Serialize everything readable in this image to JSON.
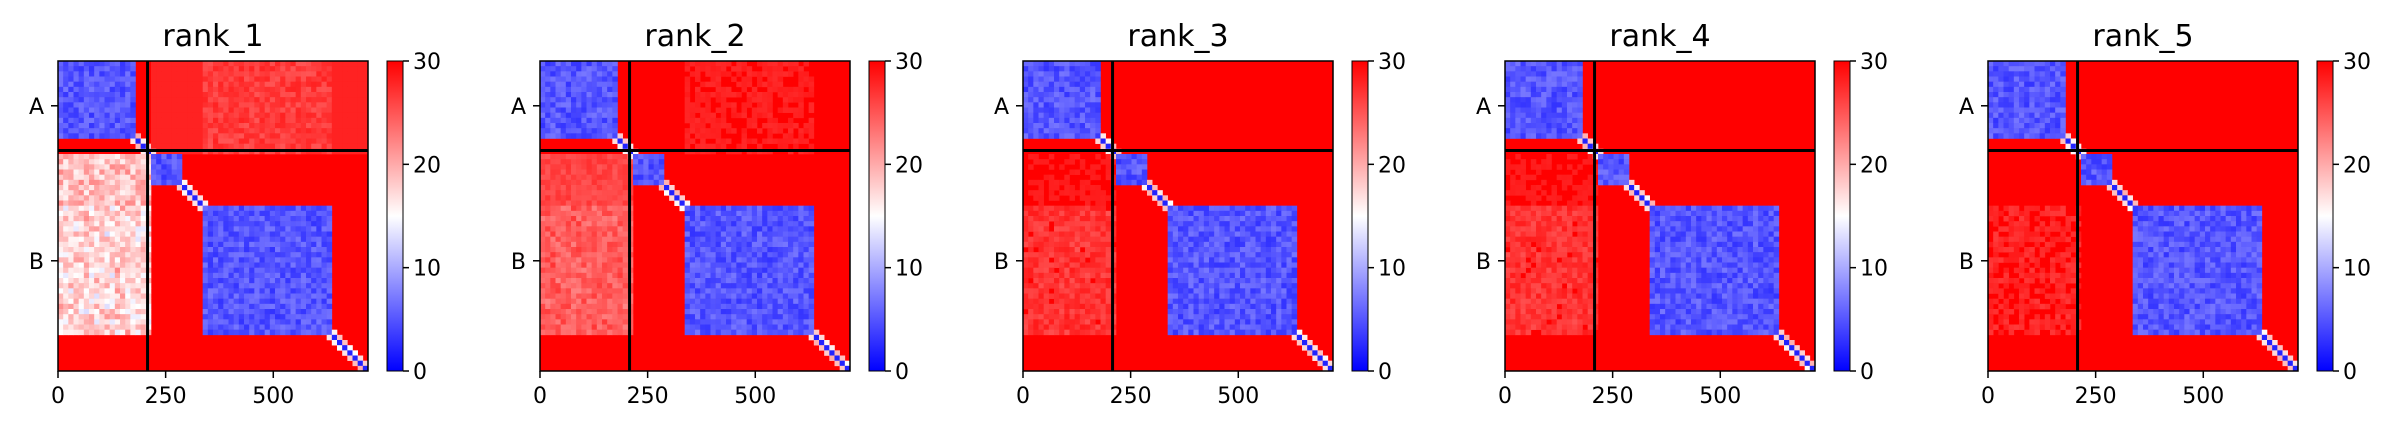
{
  "colors": {
    "high": "#ff0000",
    "mid": "#ffffff",
    "low": "#0000ff",
    "divider": "#000000"
  },
  "chart_data": [
    {
      "type": "heatmap",
      "title": "rank_1",
      "colormap": "bwr",
      "vmin": 0,
      "vmax": 30,
      "colorbar_ticks": [
        0,
        10,
        20,
        30
      ],
      "x_ticks": [
        0,
        250,
        500
      ],
      "y_tick_labels": [
        "A",
        "B"
      ],
      "n_residues": 720,
      "chain_boundary": 208,
      "chains": [
        {
          "name": "A",
          "start": 0,
          "end": 208
        },
        {
          "name": "B",
          "start": 208,
          "end": 720
        }
      ],
      "inter_chain_pae": {
        "AB_upper": 28,
        "BA_lower": 19
      },
      "band_pattern": "strong"
    },
    {
      "type": "heatmap",
      "title": "rank_2",
      "colormap": "bwr",
      "vmin": 0,
      "vmax": 30,
      "colorbar_ticks": [
        0,
        10,
        20,
        30
      ],
      "x_ticks": [
        0,
        250,
        500
      ],
      "y_tick_labels": [
        "A",
        "B"
      ],
      "n_residues": 720,
      "chain_boundary": 208,
      "chains": [
        {
          "name": "A",
          "start": 0,
          "end": 208
        },
        {
          "name": "B",
          "start": 208,
          "end": 720
        }
      ],
      "inter_chain_pae": {
        "AB_upper": 29,
        "BA_lower": 26
      },
      "band_pattern": "moderate"
    },
    {
      "type": "heatmap",
      "title": "rank_3",
      "colormap": "bwr",
      "vmin": 0,
      "vmax": 30,
      "colorbar_ticks": [
        0,
        10,
        20,
        30
      ],
      "x_ticks": [
        0,
        250,
        500
      ],
      "y_tick_labels": [
        "A",
        "B"
      ],
      "n_residues": 720,
      "chain_boundary": 208,
      "chains": [
        {
          "name": "A",
          "start": 0,
          "end": 208
        },
        {
          "name": "B",
          "start": 208,
          "end": 720
        }
      ],
      "inter_chain_pae": {
        "AB_upper": 29.5,
        "BA_lower": 28.5
      },
      "band_pattern": "weak"
    },
    {
      "type": "heatmap",
      "title": "rank_4",
      "colormap": "bwr",
      "vmin": 0,
      "vmax": 30,
      "colorbar_ticks": [
        0,
        10,
        20,
        30
      ],
      "x_ticks": [
        0,
        250,
        500
      ],
      "y_tick_labels": [
        "A",
        "B"
      ],
      "n_residues": 720,
      "chain_boundary": 208,
      "chains": [
        {
          "name": "A",
          "start": 0,
          "end": 208
        },
        {
          "name": "B",
          "start": 208,
          "end": 720
        }
      ],
      "inter_chain_pae": {
        "AB_upper": 29.5,
        "BA_lower": 28.5
      },
      "band_pattern": "weak"
    },
    {
      "type": "heatmap",
      "title": "rank_5",
      "colormap": "bwr",
      "vmin": 0,
      "vmax": 30,
      "colorbar_ticks": [
        0,
        10,
        20,
        30
      ],
      "x_ticks": [
        0,
        250,
        500
      ],
      "y_tick_labels": [
        "A",
        "B"
      ],
      "n_residues": 720,
      "chain_boundary": 208,
      "chains": [
        {
          "name": "A",
          "start": 0,
          "end": 208
        },
        {
          "name": "B",
          "start": 208,
          "end": 720
        }
      ],
      "inter_chain_pae": {
        "AB_upper": 29.8,
        "BA_lower": 29.6
      },
      "band_pattern": "faint"
    }
  ]
}
